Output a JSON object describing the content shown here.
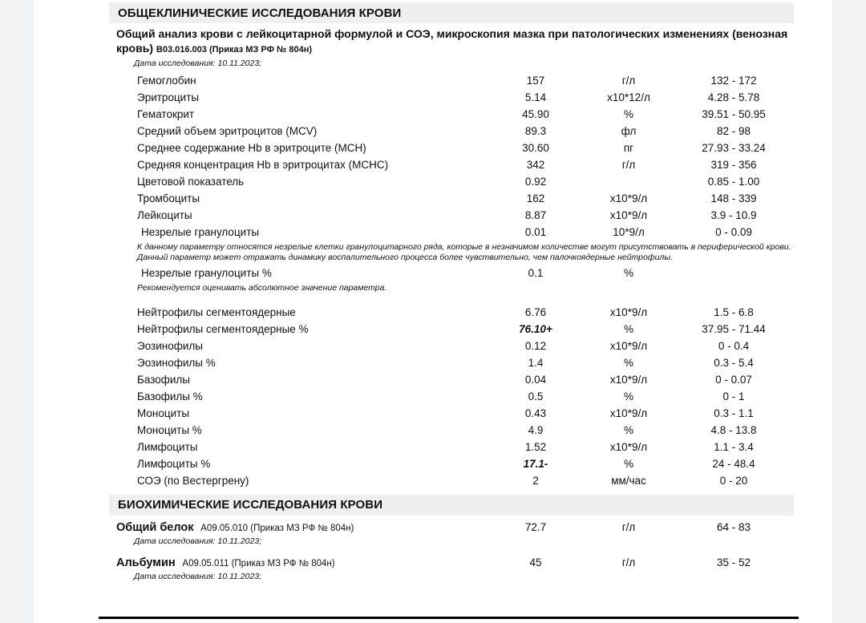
{
  "colors": {
    "outer_background": "#f1f3f4",
    "page_background": "#ffffff",
    "section_bar": "#efefef",
    "text": "#111111",
    "footer_line": "#000000"
  },
  "panel1": {
    "section_title": "ОБЩЕКЛИНИЧЕСКИЕ ИССЛЕДОВАНИЯ КРОВИ",
    "test_title": "Общий анализ крови с лейкоцитарной формулой и СОЭ, микроскопия мазка при патологических изменениях (венозная кровь)",
    "test_code": "В03.016.003 (Приказ МЗ РФ № 804н)",
    "study_date": "Дата исследования: 10.11.2023;",
    "rows": [
      {
        "type": "test",
        "name": "Гемоглобин",
        "value": "157",
        "unit": "г/л",
        "range": "132 - 172"
      },
      {
        "type": "test",
        "name": "Эритроциты",
        "value": "5.14",
        "unit": "х10*12/л",
        "range": "4.28 - 5.78"
      },
      {
        "type": "test",
        "name": "Гематокрит",
        "value": "45.90",
        "unit": "%",
        "range": "39.51 - 50.95"
      },
      {
        "type": "test",
        "name": "Средний объем эритроцитов (MCV)",
        "value": "89.3",
        "unit": "фл",
        "range": "82 - 98"
      },
      {
        "type": "test",
        "name": "Среднее содержание Hb в эритроците (MCH)",
        "value": "30.60",
        "unit": "пг",
        "range": "27.93 - 33.24"
      },
      {
        "type": "test",
        "name": "Средняя концентрация Hb в эритроцитах (MCHC)",
        "value": "342",
        "unit": "г/л",
        "range": "319 - 356"
      },
      {
        "type": "test",
        "name": "Цветовой показатель",
        "value": "0.92",
        "unit": "",
        "range": "0.85 - 1.00"
      },
      {
        "type": "test",
        "name": "Тромбоциты",
        "value": "162",
        "unit": "х10*9/л",
        "range": "148 - 339"
      },
      {
        "type": "test",
        "name": "Лейкоциты",
        "value": "8.87",
        "unit": "х10*9/л",
        "range": "3.9 - 10.9"
      },
      {
        "type": "test",
        "name": "Незрелые гранулоциты",
        "value": "0.01",
        "unit": "10*9/л",
        "range": "0 - 0.09",
        "indent": true
      },
      {
        "type": "note",
        "text": "К данному параметру относятся незрелые клетки гранулоцитарного ряда, которые  в незначимом количестве могут присутствовать в периферической крови. Данный параметр может отражать динамику воспалительного процесса более чувствительно, чем палочкоядерные нейтрофилы."
      },
      {
        "type": "test",
        "name": "Незрелые гранулоциты %",
        "value": "0.1",
        "unit": "%",
        "range": "",
        "indent": true
      },
      {
        "type": "note",
        "text": "Рекомендуется оценивать абсолютное значение параметра.",
        "gap_after": true
      },
      {
        "type": "test",
        "name": "Нейтрофилы сегментоядерные",
        "value": "6.76",
        "unit": "х10*9/л",
        "range": "1.5 - 6.8"
      },
      {
        "type": "test",
        "name": "Нейтрофилы сегментоядерные %",
        "value": "76.10+",
        "unit": "%",
        "range": "37.95 - 71.44",
        "flag": true
      },
      {
        "type": "test",
        "name": "Эозинофилы",
        "value": "0.12",
        "unit": "х10*9/л",
        "range": "0 - 0.4"
      },
      {
        "type": "test",
        "name": "Эозинофилы %",
        "value": "1.4",
        "unit": "%",
        "range": "0.3 - 5.4"
      },
      {
        "type": "test",
        "name": "Базофилы",
        "value": "0.04",
        "unit": "х10*9/л",
        "range": "0 - 0.07"
      },
      {
        "type": "test",
        "name": "Базофилы %",
        "value": "0.5",
        "unit": "%",
        "range": "0 - 1"
      },
      {
        "type": "test",
        "name": "Моноциты",
        "value": "0.43",
        "unit": "х10*9/л",
        "range": "0.3 - 1.1"
      },
      {
        "type": "test",
        "name": "Моноциты %",
        "value": "4.9",
        "unit": "%",
        "range": "4.8 - 13.8"
      },
      {
        "type": "test",
        "name": "Лимфоциты",
        "value": "1.52",
        "unit": "х10*9/л",
        "range": "1.1 - 3.4"
      },
      {
        "type": "test",
        "name": "Лимфоциты %",
        "value": "17.1-",
        "unit": "%",
        "range": "24 - 48.4",
        "flag": true
      },
      {
        "type": "test",
        "name": "СОЭ (по Вестергрену)",
        "value": "2",
        "unit": "мм/час",
        "range": "0 - 20"
      }
    ]
  },
  "panel2": {
    "section_title": "БИОХИМИЧЕСКИЕ ИССЛЕДОВАНИЯ КРОВИ",
    "tests": [
      {
        "name": "Общий белок",
        "code": "А09.05.010 (Приказ МЗ РФ № 804н)",
        "value": "72.7",
        "unit": "г/л",
        "range": "64 - 83",
        "date": "Дата исследования: 10.11.2023;"
      },
      {
        "name": "Альбумин",
        "code": "А09.05.011 (Приказ МЗ РФ № 804н)",
        "value": "45",
        "unit": "г/л",
        "range": "35 - 52",
        "date": "Дата исследования: 10.11.2023;"
      }
    ]
  }
}
